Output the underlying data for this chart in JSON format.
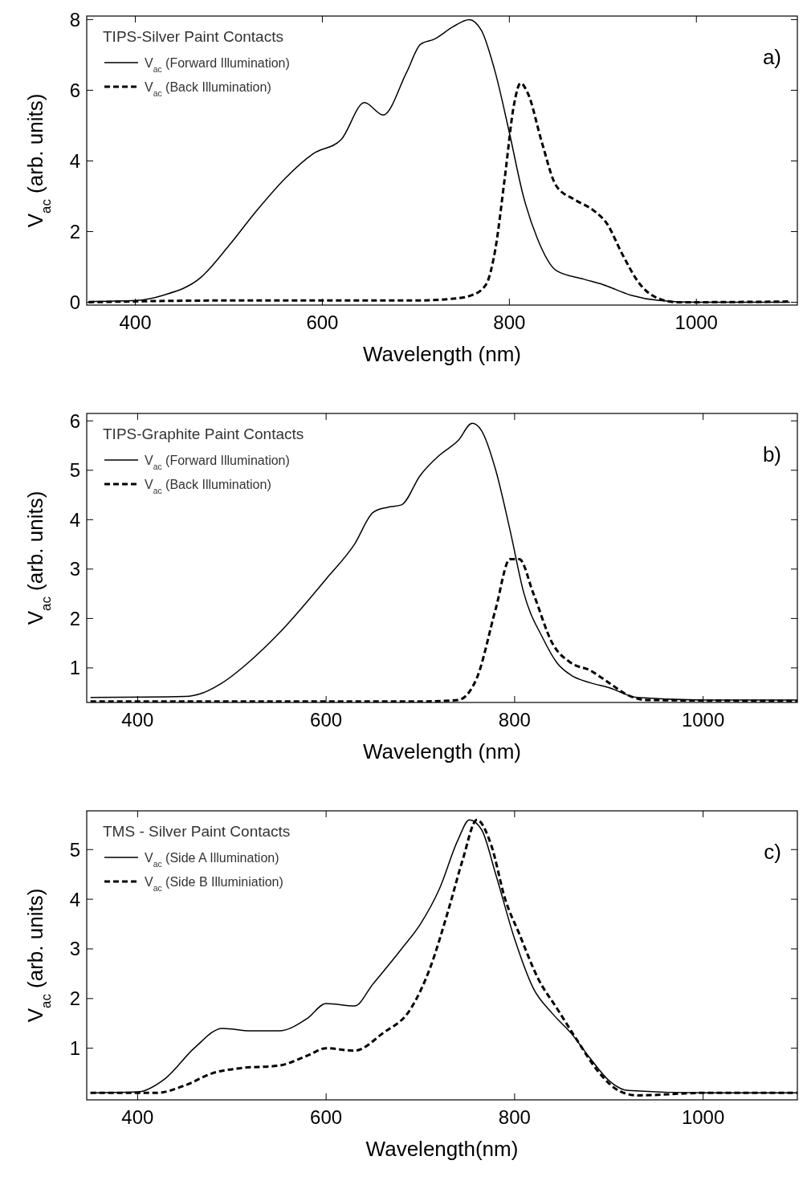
{
  "chart_data": [
    {
      "type": "line",
      "xlabel": "Wavelength (nm)",
      "ylabel": "V$_{ac}$ (arb. units)",
      "legend_title": "TIPS-Silver Paint Contacts",
      "legend": "top left",
      "grid": false,
      "xlim": [
        348,
        1108
      ],
      "ylim": [
        -0.08,
        8.1
      ],
      "xticks": [
        400,
        600,
        800,
        1000
      ],
      "yticks": [
        0,
        2,
        4,
        6,
        8
      ],
      "annotations": [
        "a)"
      ],
      "series": [
        {
          "name": "V$_{ac}$ (Forward Illumination)",
          "color": "#000000",
          "line_style": "solid",
          "x": [
            350,
            400,
            430,
            470,
            500,
            530,
            560,
            590,
            620,
            645,
            665,
            690,
            705,
            720,
            740,
            757,
            770,
            785,
            800,
            815,
            830,
            850,
            880,
            900,
            930,
            960,
            1000,
            1100
          ],
          "values": [
            0.02,
            0.05,
            0.2,
            0.7,
            1.6,
            2.6,
            3.5,
            4.2,
            4.6,
            5.65,
            5.3,
            6.5,
            7.3,
            7.45,
            7.8,
            8.0,
            7.7,
            6.5,
            4.8,
            3.0,
            1.8,
            0.9,
            0.65,
            0.5,
            0.2,
            0.05,
            0.0,
            0.0
          ]
        },
        {
          "name": "V$_{ac}$ (Back Illumination)",
          "color": "#000000",
          "line_style": "dashed",
          "x": [
            350,
            500,
            600,
            700,
            740,
            760,
            775,
            785,
            795,
            805,
            812,
            820,
            835,
            850,
            870,
            890,
            905,
            920,
            940,
            960,
            980,
            1100
          ],
          "values": [
            0.0,
            0.05,
            0.05,
            0.05,
            0.1,
            0.2,
            0.5,
            1.5,
            3.5,
            5.6,
            6.2,
            5.9,
            4.5,
            3.3,
            2.9,
            2.6,
            2.2,
            1.4,
            0.5,
            0.1,
            0.0,
            0.02
          ]
        }
      ]
    },
    {
      "type": "line",
      "xlabel": "Wavelength (nm)",
      "ylabel": "V$_{ac}$ (arb. units)",
      "legend_title": "TIPS-Graphite Paint Contacts",
      "legend": "top left",
      "grid": false,
      "xlim": [
        346,
        1100
      ],
      "ylim": [
        0.3,
        6.15
      ],
      "xticks": [
        400,
        600,
        800,
        1000
      ],
      "yticks": [
        1,
        2,
        3,
        4,
        5,
        6
      ],
      "annotations": [
        "b)"
      ],
      "series": [
        {
          "name": "V$_{ac}$ (Forward Illumination)",
          "color": "#000000",
          "line_style": "solid",
          "x": [
            350,
            450,
            470,
            490,
            520,
            550,
            600,
            630,
            650,
            665,
            680,
            700,
            720,
            740,
            755,
            765,
            780,
            795,
            810,
            830,
            845,
            860,
            880,
            900,
            930,
            1000,
            1100
          ],
          "values": [
            0.4,
            0.42,
            0.5,
            0.7,
            1.15,
            1.7,
            2.8,
            3.5,
            4.15,
            4.25,
            4.3,
            4.9,
            5.3,
            5.6,
            5.95,
            5.8,
            5.0,
            3.8,
            2.5,
            1.6,
            1.1,
            0.85,
            0.7,
            0.6,
            0.4,
            0.35,
            0.35
          ]
        },
        {
          "name": "V$_{ac}$ (Back Illumination)",
          "color": "#000000",
          "line_style": "dashed",
          "x": [
            350,
            700,
            740,
            760,
            780,
            795,
            805,
            820,
            840,
            860,
            880,
            900,
            920,
            940,
            1100
          ],
          "values": [
            0.32,
            0.32,
            0.35,
            0.8,
            2.2,
            3.2,
            3.2,
            2.5,
            1.5,
            1.1,
            0.95,
            0.7,
            0.45,
            0.35,
            0.33
          ]
        }
      ]
    },
    {
      "type": "line",
      "xlabel": "Wavelength(nm)",
      "ylabel": "V$_{ac}$ (arb. units)",
      "legend_title": "TMS - Silver Paint Contacts",
      "legend": "top left",
      "grid": false,
      "xlim": [
        346,
        1100
      ],
      "ylim": [
        -0.04,
        5.78
      ],
      "xticks": [
        400,
        600,
        800,
        1000
      ],
      "yticks": [
        1,
        2,
        3,
        4,
        5
      ],
      "annotations": [
        "c)"
      ],
      "series": [
        {
          "name": "V$_{ac}$ (Side A Illumination)",
          "color": "#000000",
          "line_style": "solid",
          "x": [
            350,
            400,
            430,
            460,
            490,
            520,
            550,
            580,
            600,
            630,
            650,
            680,
            700,
            720,
            740,
            752,
            765,
            780,
            800,
            820,
            840,
            860,
            880,
            900,
            920,
            1000,
            1100
          ],
          "values": [
            0.1,
            0.12,
            0.4,
            1.0,
            1.4,
            1.35,
            1.35,
            1.6,
            1.9,
            1.85,
            2.3,
            3.0,
            3.5,
            4.2,
            5.2,
            5.6,
            5.4,
            4.5,
            3.2,
            2.2,
            1.7,
            1.3,
            0.8,
            0.35,
            0.15,
            0.1,
            0.1
          ]
        },
        {
          "name": "V$_{ac}$ (Side B Illuminiation)",
          "color": "#000000",
          "line_style": "dashed",
          "x": [
            350,
            420,
            450,
            480,
            510,
            550,
            580,
            600,
            630,
            660,
            690,
            710,
            730,
            745,
            760,
            775,
            790,
            805,
            825,
            845,
            865,
            890,
            910,
            930,
            1000,
            1100
          ],
          "values": [
            0.1,
            0.1,
            0.25,
            0.5,
            0.6,
            0.65,
            0.85,
            1.0,
            0.95,
            1.3,
            1.8,
            2.6,
            3.8,
            4.8,
            5.6,
            5.1,
            4.0,
            3.3,
            2.4,
            1.8,
            1.2,
            0.5,
            0.15,
            0.05,
            0.1,
            0.1
          ]
        }
      ]
    }
  ]
}
